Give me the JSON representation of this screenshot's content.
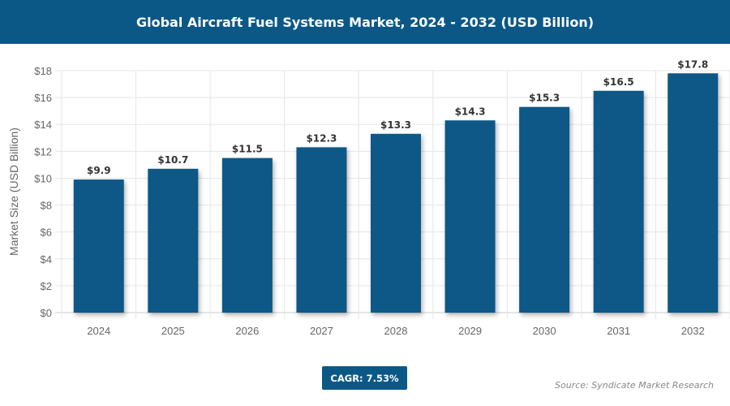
{
  "header": {
    "title": "Global Aircraft Fuel Systems Market, 2024 - 2032 (USD Billion)"
  },
  "chart_data": {
    "type": "bar",
    "title": "Global Aircraft Fuel Systems Market, 2024 - 2032 (USD Billion)",
    "categories": [
      "2024",
      "2025",
      "2026",
      "2027",
      "2028",
      "2029",
      "2030",
      "2031",
      "2032"
    ],
    "values": [
      9.9,
      10.7,
      11.5,
      12.3,
      13.3,
      14.3,
      15.3,
      16.5,
      17.8
    ],
    "data_labels": [
      "$9.9",
      "$10.7",
      "$11.5",
      "$12.3",
      "$13.3",
      "$14.3",
      "$15.3",
      "$16.5",
      "$17.8"
    ],
    "xlabel": "",
    "ylabel": "Market Size (USD Billion)",
    "ylim": [
      0,
      18
    ],
    "yticks": [
      "$0",
      "$2",
      "$4",
      "$6",
      "$8",
      "$10",
      "$12",
      "$14",
      "$16",
      "$18"
    ],
    "grid": true,
    "bar_color": "#0b5887"
  },
  "footer": {
    "cagr": "CAGR: 7.53%",
    "source": "Source: Syndicate Market Research"
  }
}
